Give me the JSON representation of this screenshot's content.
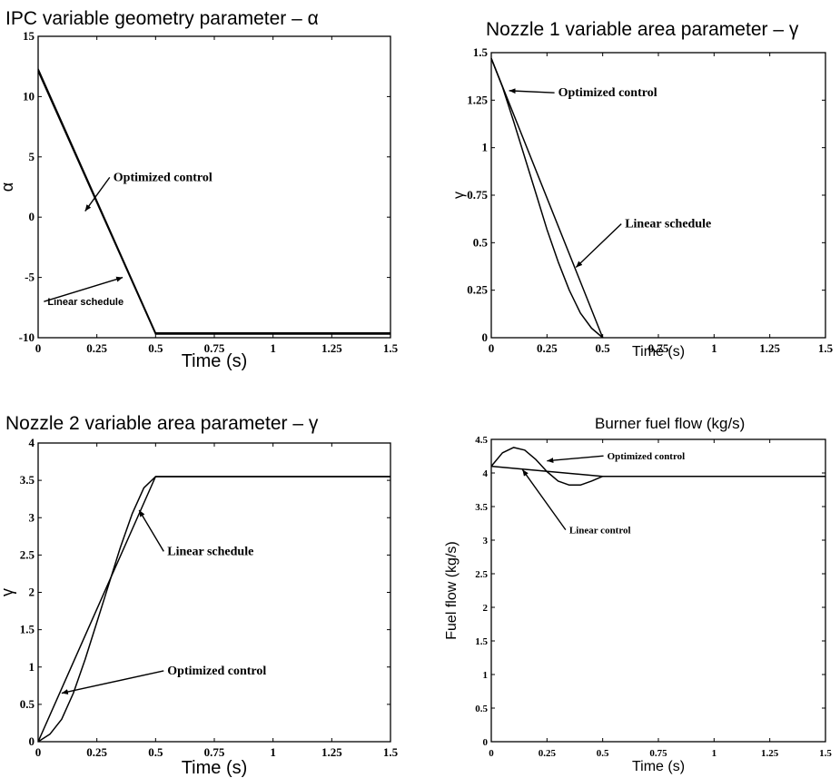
{
  "chart_data": [
    {
      "type": "line",
      "title": "IPC variable geometry parameter – α",
      "xlabel": "Time (s)",
      "ylabel": "α",
      "xlim": [
        0,
        1.5
      ],
      "ylim": [
        -10,
        15
      ],
      "xticks": [
        "0",
        "0.25",
        "0.5",
        "0.75",
        "1",
        "1.25",
        "1.5"
      ],
      "yticks": [
        "-10",
        "-5",
        "0",
        "5",
        "10",
        "15"
      ],
      "grid": false,
      "series": [
        {
          "x": [
            0,
            0.5,
            1.5
          ],
          "y": [
            12.3,
            -9.6,
            -9.6
          ]
        },
        {
          "x": [
            0,
            0.5,
            1.5
          ],
          "y": [
            12.1,
            -9.7,
            -9.7
          ]
        }
      ],
      "annotations": [
        {
          "text": "Optimized control",
          "x": 0.32,
          "y": 3.0,
          "arrow_to": [
            0.2,
            0.5
          ]
        },
        {
          "text": "Linear schedule",
          "x": 0.04,
          "y": -7.3,
          "arrow_to": [
            0.36,
            -5.0
          ]
        }
      ]
    },
    {
      "type": "line",
      "title": "Nozzle 1 variable area parameter – γ",
      "xlabel": "Time (s)",
      "ylabel": "γ",
      "xlim": [
        0,
        1.5
      ],
      "ylim": [
        0,
        1.5
      ],
      "xticks": [
        "0",
        "0.25",
        "0.5",
        "0.75",
        "1",
        "1.25",
        "1.5"
      ],
      "yticks": [
        "0",
        "0.25",
        "0.5",
        "0.75",
        "1",
        "1.25",
        "1.5"
      ],
      "grid": false,
      "series": [
        {
          "x": [
            0,
            0.05,
            0.1,
            0.15,
            0.2,
            0.25,
            0.3,
            0.35,
            0.4,
            0.45,
            0.5
          ],
          "y": [
            1.47,
            1.32,
            1.14,
            0.95,
            0.76,
            0.57,
            0.4,
            0.25,
            0.13,
            0.05,
            0.0
          ]
        },
        {
          "x": [
            0,
            0.5
          ],
          "y": [
            1.47,
            0.0
          ]
        }
      ],
      "annotations": [
        {
          "text": "Optimized control",
          "x": 0.3,
          "y": 1.27,
          "arrow_to": [
            0.08,
            1.3
          ]
        },
        {
          "text": "Linear schedule",
          "x": 0.6,
          "y": 0.58,
          "arrow_to": [
            0.38,
            0.37
          ]
        }
      ]
    },
    {
      "type": "line",
      "title": "Nozzle 2 variable area parameter – γ",
      "xlabel": "Time (s)",
      "ylabel": "γ",
      "xlim": [
        0,
        1.5
      ],
      "ylim": [
        0,
        4
      ],
      "xticks": [
        "0",
        "0.25",
        "0.5",
        "0.75",
        "1",
        "1.25",
        "1.5"
      ],
      "yticks": [
        "0",
        "0.5",
        "1",
        "1.5",
        "2",
        "2.5",
        "3",
        "3.5",
        "4"
      ],
      "grid": false,
      "series": [
        {
          "x": [
            0,
            0.05,
            0.1,
            0.15,
            0.2,
            0.25,
            0.3,
            0.35,
            0.4,
            0.45,
            0.5,
            1.5
          ],
          "y": [
            0,
            0.1,
            0.3,
            0.65,
            1.1,
            1.6,
            2.1,
            2.6,
            3.05,
            3.4,
            3.55,
            3.55
          ]
        },
        {
          "x": [
            0,
            0.5,
            1.5
          ],
          "y": [
            0,
            3.55,
            3.55
          ]
        }
      ],
      "annotations": [
        {
          "text": "Linear schedule",
          "x": 0.55,
          "y": 2.5,
          "arrow_to": [
            0.43,
            3.1
          ]
        },
        {
          "text": "Optimized control",
          "x": 0.55,
          "y": 0.9,
          "arrow_to": [
            0.1,
            0.65
          ]
        }
      ]
    },
    {
      "type": "line",
      "title": "Burner fuel flow (kg/s)",
      "xlabel": "Time (s)",
      "ylabel": "Fuel flow (kg/s)",
      "xlim": [
        0,
        1.5
      ],
      "ylim": [
        0,
        4.5
      ],
      "xticks": [
        "0",
        "0.25",
        "0.5",
        "0.75",
        "1",
        "1.25",
        "1.5"
      ],
      "yticks": [
        "0",
        "0.5",
        "1",
        "1.5",
        "2",
        "2.5",
        "3",
        "3.5",
        "4",
        "4.5"
      ],
      "grid": false,
      "series": [
        {
          "x": [
            0,
            0.05,
            0.1,
            0.15,
            0.2,
            0.25,
            0.3,
            0.35,
            0.4,
            0.45,
            0.5,
            1.5
          ],
          "y": [
            4.1,
            4.3,
            4.38,
            4.34,
            4.2,
            4.02,
            3.88,
            3.82,
            3.82,
            3.88,
            3.95,
            3.95
          ]
        },
        {
          "x": [
            0,
            0.5,
            1.5
          ],
          "y": [
            4.1,
            3.95,
            3.95
          ]
        }
      ],
      "annotations": [
        {
          "text": "Optimized control",
          "x": 0.52,
          "y": 4.2,
          "arrow_to": [
            0.25,
            4.18
          ]
        },
        {
          "text": "Linear control",
          "x": 0.35,
          "y": 3.1,
          "arrow_to": [
            0.14,
            4.05
          ]
        }
      ]
    }
  ]
}
